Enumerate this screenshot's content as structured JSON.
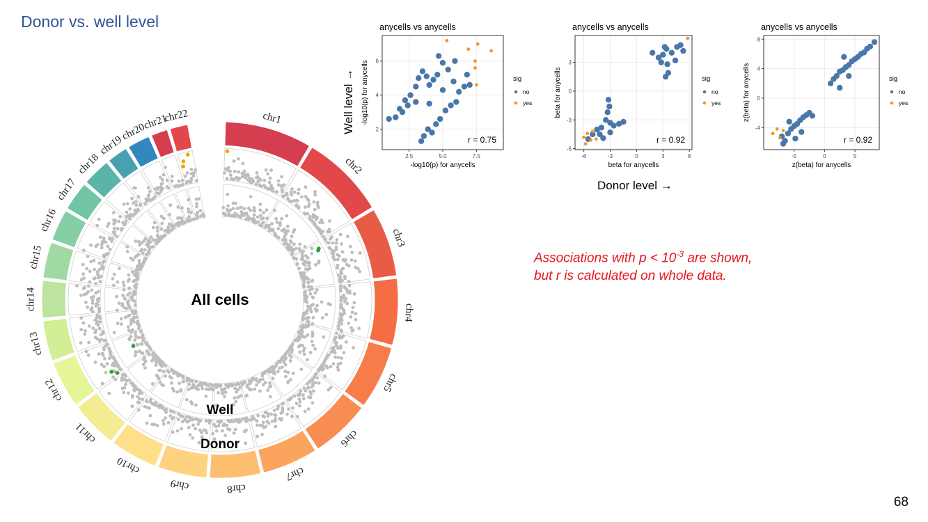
{
  "slide": {
    "title": "Donor vs. well level",
    "note_line1_pre": "Associations with p < 10",
    "note_line1_sup": "-3",
    "note_line1_post": " are shown,",
    "note_line2": "but r is calculated on whole data.",
    "page_number": "68",
    "well_axis_label": "Well level →",
    "donor_axis_label": "Donor level →"
  },
  "colors": {
    "title": "#2f5597",
    "note": "#e8141e",
    "point_no": "#4a77aa",
    "point_yes": "#f0962e",
    "manhattan_point": "#bdbdbd",
    "highlight_orange": "#e6a800",
    "highlight_green": "#2ca02c",
    "chromosome_palette": [
      "#d53e4f",
      "#e2474a",
      "#ea5b47",
      "#f46d43",
      "#f67c4a",
      "#f88d52",
      "#fba45e",
      "#fdbe6f",
      "#fdd381",
      "#fee08b",
      "#f3ec92",
      "#e6f598",
      "#d4ee95",
      "#bce4a0",
      "#a0d9a3",
      "#86cfa5",
      "#6fc5a4",
      "#5ab4aa",
      "#47a1b0",
      "#3288bd"
    ]
  },
  "circos": {
    "center_label": "All cells",
    "well_label": "Well",
    "donor_label": "Donor",
    "chromosomes": [
      "chr1",
      "chr2",
      "chr3",
      "chr4",
      "chr5",
      "chr6",
      "chr7",
      "chr8",
      "chr9",
      "chr10",
      "chr11",
      "chr12",
      "chr13",
      "chr14",
      "chr15",
      "chr16",
      "chr17",
      "chr18",
      "chr19",
      "chr20",
      "chr21",
      "chr22"
    ]
  },
  "chart_data": [
    {
      "type": "scatter",
      "title": "anycells vs anycells",
      "xlabel": "-log10(p) for anycells",
      "ylabel": "-log10(p) for anycells",
      "xlim": [
        0.5,
        9.5
      ],
      "ylim": [
        0.8,
        7.5
      ],
      "xticks": [
        2.5,
        5.0,
        7.5
      ],
      "xtick_labels": [
        "2.5",
        "5.0",
        "7.5"
      ],
      "yticks": [
        2,
        4,
        6
      ],
      "ytick_labels": [
        "2",
        "4",
        "6"
      ],
      "annotation": "r = 0.75",
      "legend": {
        "title": "sig",
        "entries": [
          "no",
          "yes"
        ],
        "position": "right"
      },
      "grid": true,
      "series": [
        {
          "name": "no",
          "points": [
            [
              1.0,
              2.6
            ],
            [
              1.5,
              2.7
            ],
            [
              2.0,
              3.0
            ],
            [
              2.4,
              3.4
            ],
            [
              2.6,
              4.0
            ],
            [
              3.0,
              4.5
            ],
            [
              3.2,
              5.0
            ],
            [
              3.5,
              5.4
            ],
            [
              3.8,
              5.1
            ],
            [
              4.0,
              4.6
            ],
            [
              4.3,
              4.9
            ],
            [
              4.6,
              5.2
            ],
            [
              5.0,
              4.3
            ],
            [
              5.4,
              5.5
            ],
            [
              5.8,
              4.8
            ],
            [
              6.2,
              4.2
            ],
            [
              6.6,
              4.5
            ],
            [
              7.0,
              4.6
            ],
            [
              3.4,
              1.3
            ],
            [
              3.6,
              1.6
            ],
            [
              3.9,
              2.0
            ],
            [
              4.2,
              1.8
            ],
            [
              4.5,
              2.3
            ],
            [
              4.8,
              2.6
            ],
            [
              5.2,
              3.1
            ],
            [
              5.6,
              3.4
            ],
            [
              6.0,
              3.6
            ],
            [
              2.2,
              3.7
            ],
            [
              1.8,
              3.2
            ],
            [
              3.0,
              3.6
            ],
            [
              4.0,
              3.5
            ],
            [
              5.0,
              5.9
            ],
            [
              4.7,
              6.3
            ],
            [
              5.9,
              6.0
            ],
            [
              6.8,
              5.2
            ]
          ]
        },
        {
          "name": "yes",
          "points": [
            [
              5.3,
              7.2
            ],
            [
              6.9,
              6.7
            ],
            [
              7.6,
              7.0
            ],
            [
              8.6,
              6.6
            ],
            [
              7.4,
              6.0
            ],
            [
              7.4,
              5.6
            ],
            [
              7.5,
              4.6
            ]
          ]
        }
      ]
    },
    {
      "type": "scatter",
      "title": "anycells vs anycells",
      "xlabel": "beta for anycells",
      "ylabel": "beta for anycells",
      "xlim": [
        -7,
        6.3
      ],
      "ylim": [
        -6.1,
        5.8
      ],
      "xticks": [
        -6,
        -3,
        0,
        3,
        6
      ],
      "xtick_labels": [
        "-6",
        "-3",
        "0",
        "3",
        "6"
      ],
      "yticks": [
        -6,
        -3,
        0,
        3
      ],
      "ytick_labels": [
        "-6",
        "-3",
        "0",
        "3"
      ],
      "annotation": "r = 0.92",
      "legend": {
        "title": "sig",
        "entries": [
          "no",
          "yes"
        ],
        "position": "right"
      },
      "grid": true,
      "series": [
        {
          "name": "no",
          "points": [
            [
              -5.0,
              -4.5
            ],
            [
              -4.5,
              -4.0
            ],
            [
              -4.0,
              -3.8
            ],
            [
              -3.5,
              -3.0
            ],
            [
              -3.0,
              -3.3
            ],
            [
              -2.6,
              -3.6
            ],
            [
              -2.0,
              -3.4
            ],
            [
              -3.3,
              -2.2
            ],
            [
              -3.1,
              -1.6
            ],
            [
              -3.2,
              -0.9
            ],
            [
              -4.2,
              -4.5
            ],
            [
              -3.8,
              -4.9
            ],
            [
              -3.0,
              -4.3
            ],
            [
              -1.5,
              -3.2
            ],
            [
              -5.5,
              -5.0
            ],
            [
              1.8,
              4.0
            ],
            [
              2.5,
              3.5
            ],
            [
              3.0,
              3.8
            ],
            [
              3.4,
              4.4
            ],
            [
              4.0,
              4.0
            ],
            [
              4.6,
              4.6
            ],
            [
              5.0,
              4.8
            ],
            [
              3.5,
              2.8
            ],
            [
              3.6,
              1.9
            ],
            [
              3.3,
              1.5
            ],
            [
              2.8,
              3.0
            ],
            [
              4.4,
              3.2
            ],
            [
              3.2,
              4.6
            ],
            [
              5.3,
              4.2
            ]
          ]
        },
        {
          "name": "yes",
          "points": [
            [
              -6.0,
              -4.8
            ],
            [
              -5.6,
              -4.4
            ],
            [
              -5.2,
              -5.1
            ],
            [
              -5.8,
              -5.5
            ],
            [
              -4.6,
              -5.0
            ],
            [
              -5.0,
              -4.2
            ],
            [
              5.8,
              5.5
            ]
          ]
        }
      ]
    },
    {
      "type": "scatter",
      "title": "anycells vs anycells",
      "xlabel": "z(beta) for anycells",
      "ylabel": "z(beta) for anycells",
      "xlim": [
        -10,
        9
      ],
      "ylim": [
        -7,
        8.5
      ],
      "xticks": [
        -5,
        0,
        5
      ],
      "xtick_labels": [
        "-5",
        "0",
        "5"
      ],
      "yticks": [
        -4,
        0,
        4,
        8
      ],
      "ytick_labels": [
        "-4",
        "0",
        "4",
        "8"
      ],
      "annotation": "r = 0.92",
      "legend": {
        "title": "sig",
        "entries": [
          "no",
          "yes"
        ],
        "position": "right"
      },
      "grid": true,
      "series": [
        {
          "name": "no",
          "points": [
            [
              -7.0,
              -5.2
            ],
            [
              -6.5,
              -5.8
            ],
            [
              -6.0,
              -4.8
            ],
            [
              -5.5,
              -4.2
            ],
            [
              -5.0,
              -3.8
            ],
            [
              -4.5,
              -3.5
            ],
            [
              -4.0,
              -3.0
            ],
            [
              -3.5,
              -2.6
            ],
            [
              -3.0,
              -2.3
            ],
            [
              -2.5,
              -2.0
            ],
            [
              -2.0,
              -2.4
            ],
            [
              -4.8,
              -5.5
            ],
            [
              -3.8,
              -4.6
            ],
            [
              -5.8,
              -3.2
            ],
            [
              -6.8,
              -6.2
            ],
            [
              1.0,
              2.0
            ],
            [
              1.5,
              2.6
            ],
            [
              2.0,
              3.0
            ],
            [
              2.5,
              3.6
            ],
            [
              3.0,
              3.8
            ],
            [
              3.5,
              4.2
            ],
            [
              4.0,
              4.5
            ],
            [
              4.5,
              5.0
            ],
            [
              5.0,
              5.3
            ],
            [
              5.5,
              5.6
            ],
            [
              6.0,
              6.0
            ],
            [
              6.5,
              6.2
            ],
            [
              7.0,
              6.7
            ],
            [
              7.5,
              7.0
            ],
            [
              2.5,
              1.4
            ],
            [
              4.0,
              3.0
            ],
            [
              3.2,
              5.6
            ],
            [
              8.2,
              7.6
            ]
          ]
        },
        {
          "name": "yes",
          "points": [
            [
              -8.5,
              -4.8
            ],
            [
              -7.8,
              -4.2
            ],
            [
              -7.3,
              -5.4
            ],
            [
              -6.8,
              -4.4
            ]
          ]
        }
      ]
    }
  ]
}
